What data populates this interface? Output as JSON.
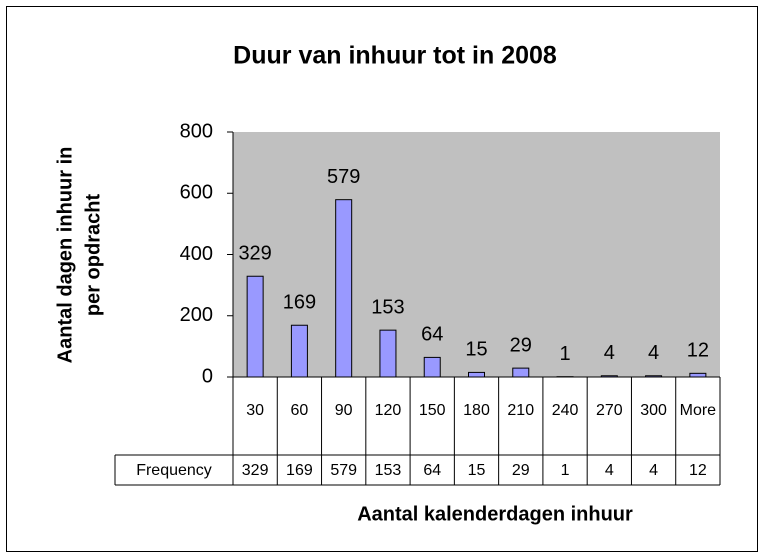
{
  "chart_data": {
    "type": "bar",
    "title": "Duur van inhuur tot in 2008",
    "ylabel": [
      "Aantal dagen inhuur in",
      "per opdracht"
    ],
    "xlabel": "Aantal kalenderdagen inhuur",
    "series_name": "Frequency",
    "categories": [
      "30",
      "60",
      "90",
      "120",
      "150",
      "180",
      "210",
      "240",
      "270",
      "300",
      "More"
    ],
    "values": [
      329,
      169,
      579,
      153,
      64,
      15,
      29,
      1,
      4,
      4,
      12
    ],
    "color": "#9999ff",
    "plot_background": "#c0c0c0",
    "ylim": [
      0,
      800
    ],
    "yticks": [
      0,
      200,
      400,
      600,
      800
    ]
  }
}
